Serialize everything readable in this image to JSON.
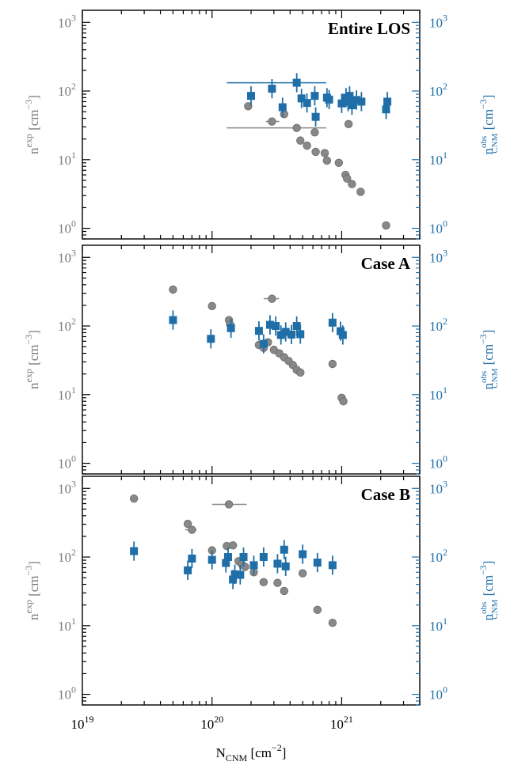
{
  "chart_data": {
    "type": "scatter",
    "xlabel": "N",
    "xlabel_sub": "CNM",
    "xlabel_unit": "[cm",
    "xlabel_unit_exp": "−2",
    "xlabel_unit_close": "]",
    "x_scale": "log",
    "xlim": [
      1e+19,
      4e+21
    ],
    "x_ticks": [
      {
        "value": 1e+19,
        "base": "10",
        "exp": "19"
      },
      {
        "value": 1e+20,
        "base": "10",
        "exp": "20"
      },
      {
        "value": 1e+21,
        "base": "10",
        "exp": "21"
      }
    ],
    "y_scale": "log",
    "ylim": [
      0.7,
      1500
    ],
    "y_ticks": [
      {
        "value": 1,
        "base": "10",
        "exp": "0"
      },
      {
        "value": 10,
        "base": "10",
        "exp": "1"
      },
      {
        "value": 100,
        "base": "10",
        "exp": "2"
      },
      {
        "value": 1000,
        "base": "10",
        "exp": "3"
      }
    ],
    "ylabel_left": "n",
    "ylabel_left_sup": "exp",
    "ylabel_left_unit": "[cm",
    "ylabel_left_unit_exp": "−3",
    "ylabel_left_close": "]",
    "ylabel_right": "n",
    "ylabel_right_sup": "obs",
    "ylabel_right_sub": "CNM",
    "ylabel_right_unit": "[cm",
    "ylabel_right_unit_exp": "−3",
    "ylabel_right_close": "]",
    "colors": {
      "exp": "#888888",
      "obs": "#1f6ea8",
      "frame": "#000000"
    },
    "grid": false,
    "panels": [
      {
        "title": "Entire LOS",
        "series": [
          {
            "key": "exp",
            "points": [
              {
                "x": 1.9e+20,
                "y": 60
              },
              {
                "x": 2.9e+20,
                "y": 36,
                "xlo": 2.6e+20,
                "xhi": 3.3e+20
              },
              {
                "x": 3.6e+20,
                "y": 46
              },
              {
                "x": 4.5e+20,
                "y": 29,
                "xlo": 1.3e+20,
                "xhi": 7.6e+20
              },
              {
                "x": 4.8e+20,
                "y": 19
              },
              {
                "x": 5.4e+20,
                "y": 16
              },
              {
                "x": 6.2e+20,
                "y": 25
              },
              {
                "x": 6.3e+20,
                "y": 13
              },
              {
                "x": 7.4e+20,
                "y": 12.5
              },
              {
                "x": 7.7e+20,
                "y": 9.7
              },
              {
                "x": 9.5e+20,
                "y": 9
              },
              {
                "x": 1.07e+21,
                "y": 6
              },
              {
                "x": 1.1e+21,
                "y": 5.3
              },
              {
                "x": 1.13e+21,
                "y": 33
              },
              {
                "x": 1.2e+21,
                "y": 4.4
              },
              {
                "x": 1.4e+21,
                "y": 3.4
              },
              {
                "x": 2.2e+21,
                "y": 1.1
              }
            ]
          },
          {
            "key": "obs",
            "points": [
              {
                "x": 2e+20,
                "y": 85
              },
              {
                "x": 2.9e+20,
                "y": 108
              },
              {
                "x": 3.5e+20,
                "y": 58
              },
              {
                "x": 4.5e+20,
                "y": 132,
                "xlo": 1.3e+20,
                "xhi": 7.6e+20
              },
              {
                "x": 4.9e+20,
                "y": 78
              },
              {
                "x": 5.4e+20,
                "y": 67
              },
              {
                "x": 6.2e+20,
                "y": 85
              },
              {
                "x": 6.3e+20,
                "y": 42
              },
              {
                "x": 7.7e+20,
                "y": 80
              },
              {
                "x": 8e+20,
                "y": 75
              },
              {
                "x": 1e+21,
                "y": 66
              },
              {
                "x": 1.08e+21,
                "y": 80
              },
              {
                "x": 1.12e+21,
                "y": 70
              },
              {
                "x": 1.15e+21,
                "y": 85
              },
              {
                "x": 1.2e+21,
                "y": 62
              },
              {
                "x": 1.3e+21,
                "y": 74
              },
              {
                "x": 1.42e+21,
                "y": 70
              },
              {
                "x": 2.2e+21,
                "y": 54
              },
              {
                "x": 2.25e+21,
                "y": 70
              }
            ]
          }
        ]
      },
      {
        "title": "Case A",
        "series": [
          {
            "key": "exp",
            "points": [
              {
                "x": 5e+19,
                "y": 340
              },
              {
                "x": 1e+20,
                "y": 195
              },
              {
                "x": 1.35e+20,
                "y": 122,
                "xlo": 1.28e+20,
                "xhi": 1.45e+20
              },
              {
                "x": 1.38e+20,
                "y": 105
              },
              {
                "x": 2.3e+20,
                "y": 53
              },
              {
                "x": 2.5e+20,
                "y": 48
              },
              {
                "x": 2.7e+20,
                "y": 58
              },
              {
                "x": 2.9e+20,
                "y": 250,
                "xlo": 2.5e+20,
                "xhi": 3.3e+20
              },
              {
                "x": 3e+20,
                "y": 45
              },
              {
                "x": 3.3e+20,
                "y": 40
              },
              {
                "x": 3.6e+20,
                "y": 35
              },
              {
                "x": 3.9e+20,
                "y": 31
              },
              {
                "x": 4.2e+20,
                "y": 27
              },
              {
                "x": 4.5e+20,
                "y": 23
              },
              {
                "x": 4.8e+20,
                "y": 21
              },
              {
                "x": 8.5e+20,
                "y": 28
              },
              {
                "x": 1e+21,
                "y": 9
              },
              {
                "x": 1.03e+21,
                "y": 8
              }
            ]
          },
          {
            "key": "obs",
            "points": [
              {
                "x": 5e+19,
                "y": 122
              },
              {
                "x": 9.8e+19,
                "y": 65
              },
              {
                "x": 1.4e+20,
                "y": 93
              },
              {
                "x": 2.3e+20,
                "y": 85
              },
              {
                "x": 2.5e+20,
                "y": 55
              },
              {
                "x": 2.8e+20,
                "y": 104
              },
              {
                "x": 3.1e+20,
                "y": 100
              },
              {
                "x": 3.4e+20,
                "y": 74
              },
              {
                "x": 3.7e+20,
                "y": 82
              },
              {
                "x": 4.1e+20,
                "y": 75
              },
              {
                "x": 4.5e+20,
                "y": 100
              },
              {
                "x": 4.8e+20,
                "y": 76
              },
              {
                "x": 8.5e+20,
                "y": 112
              },
              {
                "x": 9.8e+20,
                "y": 84
              },
              {
                "x": 1.02e+21,
                "y": 74
              }
            ]
          }
        ]
      },
      {
        "title": "Case B",
        "series": [
          {
            "key": "exp",
            "points": [
              {
                "x": 2.5e+19,
                "y": 710
              },
              {
                "x": 6.5e+19,
                "y": 305
              },
              {
                "x": 7e+19,
                "y": 250,
                "xlo": 6.2e+19,
                "xhi": 7.6e+19
              },
              {
                "x": 1e+20,
                "y": 125
              },
              {
                "x": 1.3e+20,
                "y": 145
              },
              {
                "x": 1.35e+20,
                "y": 585,
                "xlo": 1e+20,
                "xhi": 1.85e+20
              },
              {
                "x": 1.45e+20,
                "y": 148
              },
              {
                "x": 1.6e+20,
                "y": 87
              },
              {
                "x": 1.7e+20,
                "y": 78
              },
              {
                "x": 1.8e+20,
                "y": 72
              },
              {
                "x": 2.1e+20,
                "y": 60
              },
              {
                "x": 2.5e+20,
                "y": 43
              },
              {
                "x": 3.2e+20,
                "y": 42
              },
              {
                "x": 3.6e+20,
                "y": 32
              },
              {
                "x": 5e+20,
                "y": 58
              },
              {
                "x": 6.5e+20,
                "y": 17
              },
              {
                "x": 8.5e+20,
                "y": 11
              }
            ]
          },
          {
            "key": "obs",
            "points": [
              {
                "x": 2.5e+19,
                "y": 122
              },
              {
                "x": 6.5e+19,
                "y": 64
              },
              {
                "x": 7e+19,
                "y": 95
              },
              {
                "x": 1e+20,
                "y": 91
              },
              {
                "x": 1.28e+20,
                "y": 82
              },
              {
                "x": 1.33e+20,
                "y": 100
              },
              {
                "x": 1.45e+20,
                "y": 47
              },
              {
                "x": 1.5e+20,
                "y": 56
              },
              {
                "x": 1.65e+20,
                "y": 55
              },
              {
                "x": 1.75e+20,
                "y": 100
              },
              {
                "x": 2.1e+20,
                "y": 76
              },
              {
                "x": 2.5e+20,
                "y": 100
              },
              {
                "x": 3.2e+20,
                "y": 80
              },
              {
                "x": 3.6e+20,
                "y": 128
              },
              {
                "x": 3.7e+20,
                "y": 73
              },
              {
                "x": 5e+20,
                "y": 110
              },
              {
                "x": 6.5e+20,
                "y": 83
              },
              {
                "x": 8.5e+20,
                "y": 76
              }
            ]
          }
        ]
      }
    ]
  }
}
